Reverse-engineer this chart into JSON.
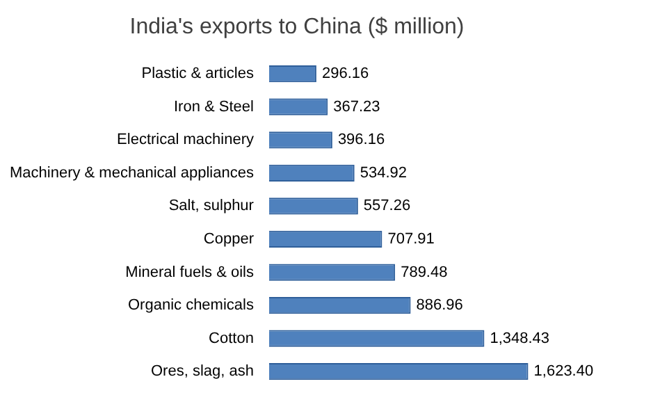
{
  "chart_data": {
    "type": "bar",
    "orientation": "horizontal",
    "title": "India's exports to China ($ million)",
    "categories": [
      "Plastic & articles",
      "Iron & Steel",
      "Electrical machinery",
      "Machinery & mechanical appliances",
      "Salt, sulphur",
      "Copper",
      "Mineral fuels & oils",
      "Organic chemicals",
      "Cotton",
      "Ores, slag, ash"
    ],
    "values": [
      296.16,
      367.23,
      396.16,
      534.92,
      557.26,
      707.91,
      789.48,
      886.96,
      1348.43,
      1623.4
    ],
    "value_labels": [
      "296.16",
      "367.23",
      "396.16",
      "534.92",
      "557.26",
      "707.91",
      "789.48",
      "886.96",
      "1,348.43",
      "1,623.40"
    ],
    "color": "#4f81bd"
  }
}
